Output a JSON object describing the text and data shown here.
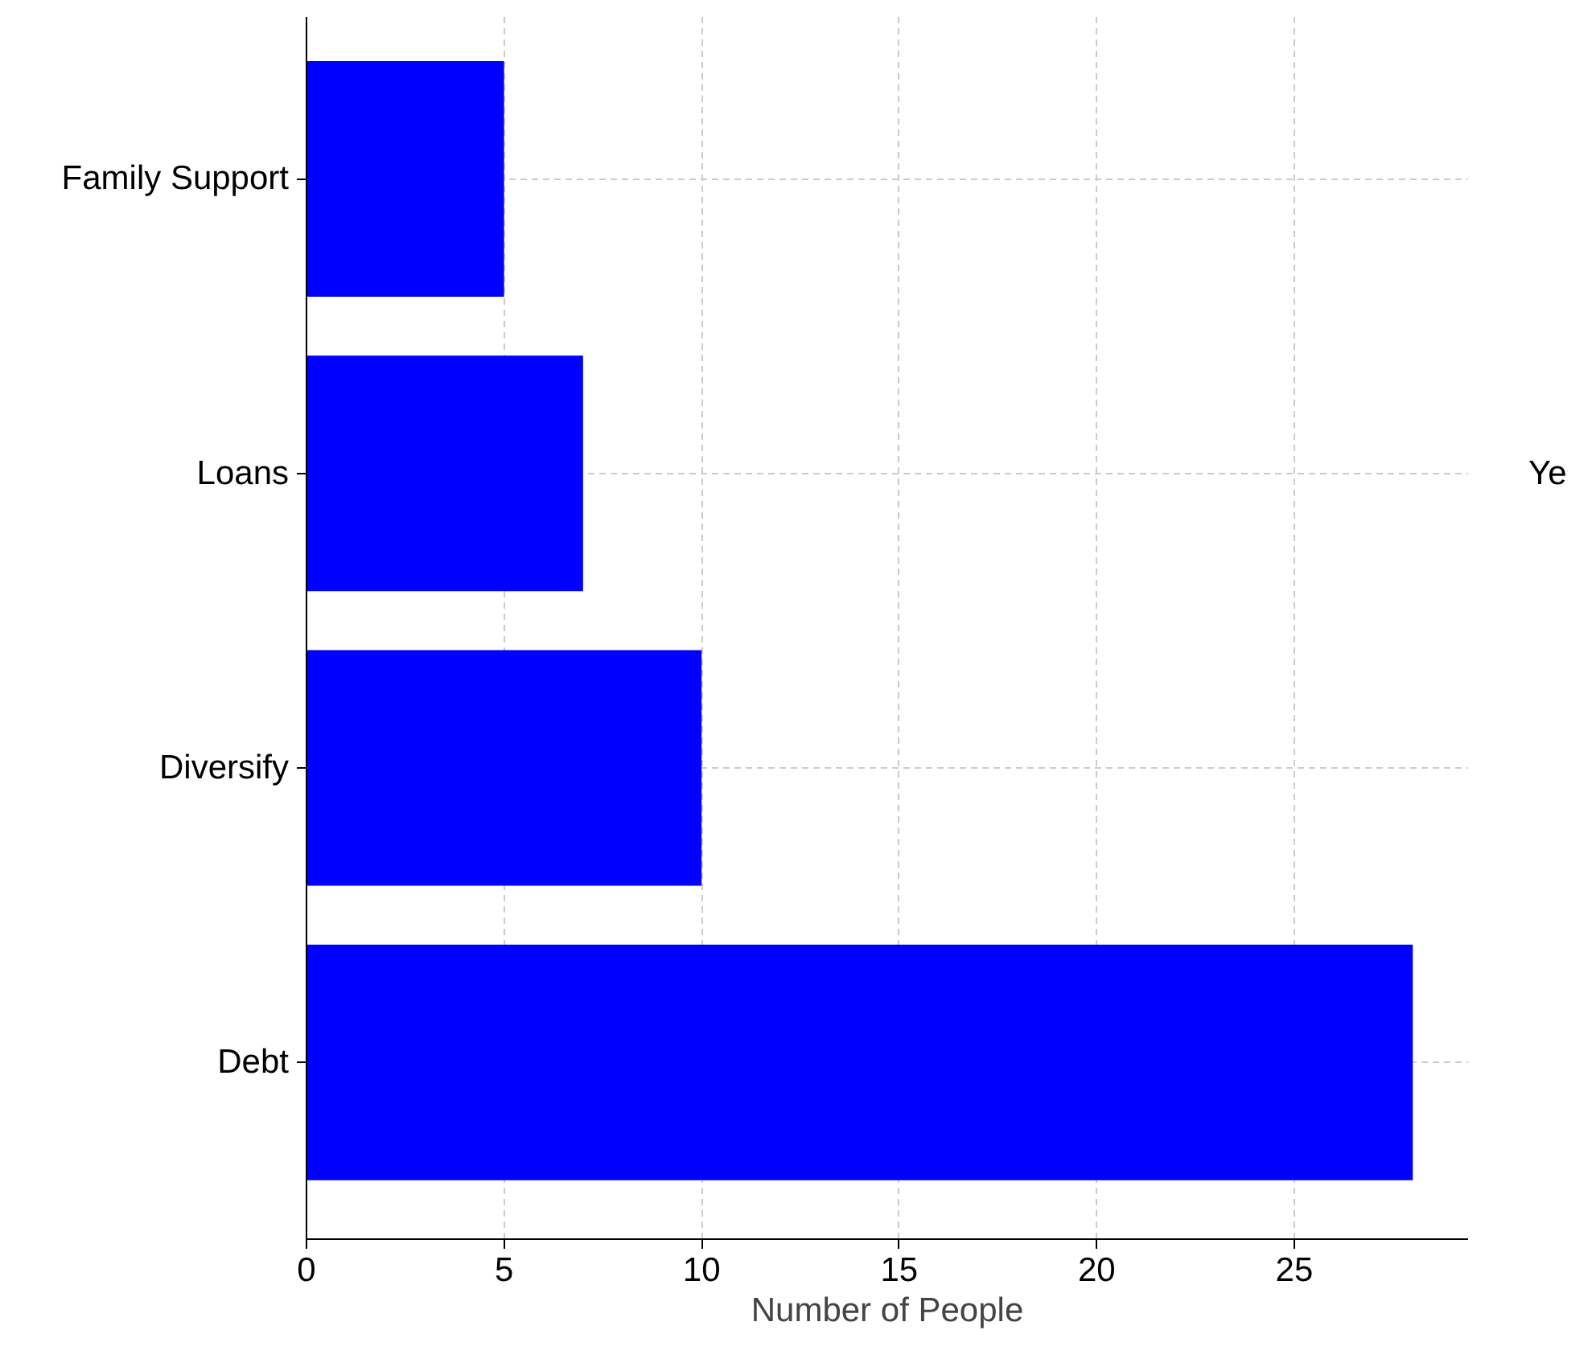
{
  "chart_data": {
    "type": "bar",
    "orientation": "horizontal",
    "xlabel": "Number of People",
    "categories": [
      "Family Support",
      "Loans",
      "Diversify",
      "Debt"
    ],
    "values": [
      5,
      7,
      10,
      28
    ],
    "color": "#0000ff",
    "xlim": [
      0,
      29.4
    ],
    "xticks": [
      0,
      5,
      10,
      15,
      20,
      25
    ],
    "grid": true,
    "annotations": [
      "Ye"
    ]
  }
}
